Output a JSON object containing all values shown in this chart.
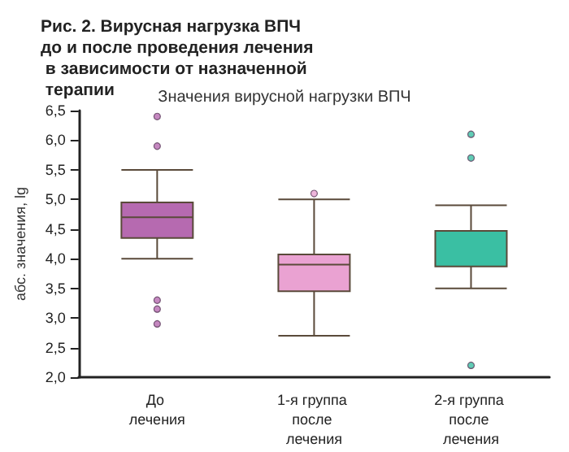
{
  "chart_data": {
    "type": "box",
    "title": "Рис. 2. Вирусная нагрузка ВПЧ до и после проведения лечения в зависимости от назначенной терапии",
    "subtitle": "Значения вирусной нагрузки ВПЧ",
    "ylabel": "абс. значения, lg",
    "categories": [
      "До лечения",
      "1-я группа после лечения",
      "2-я группа после лечения"
    ],
    "boxes": [
      {
        "low": 4.0,
        "q1": 4.35,
        "median": 4.7,
        "q3": 4.95,
        "high": 5.5,
        "outliers": [
          6.4,
          5.9,
          3.3,
          3.15,
          2.9
        ]
      },
      {
        "low": 2.7,
        "q1": 3.45,
        "median": 3.9,
        "q3": 4.07,
        "high": 5.0,
        "outliers": [
          5.1
        ]
      },
      {
        "low": 3.5,
        "q1": 3.87,
        "median": 3.87,
        "q3": 4.47,
        "high": 4.9,
        "outliers": [
          6.1,
          5.7,
          2.2
        ]
      }
    ],
    "colors": [
      "#b66ab0",
      "#eaa2d2",
      "#3abfa3"
    ],
    "ylim": [
      2,
      6.5
    ],
    "yticks": [
      {
        "value": 2,
        "label": "2,0"
      },
      {
        "value": 2.5,
        "label": "2,5"
      },
      {
        "value": 3,
        "label": "3,0"
      },
      {
        "value": 3.5,
        "label": "3,5"
      },
      {
        "value": 4,
        "label": "4,0"
      },
      {
        "value": 4.5,
        "label": "4,5"
      },
      {
        "value": 5,
        "label": "5,0"
      },
      {
        "value": 5.5,
        "label": "5,5"
      },
      {
        "value": 6,
        "label": "6,0"
      },
      {
        "value": 6.5,
        "label": "6,5"
      }
    ],
    "grid": false
  }
}
